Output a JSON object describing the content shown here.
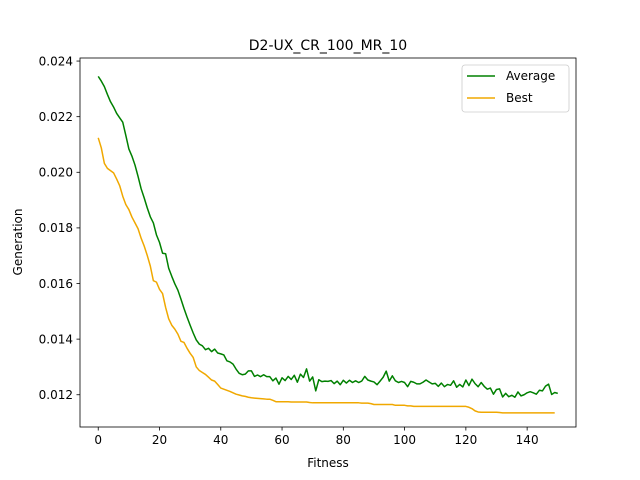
{
  "chart_data": {
    "type": "line",
    "title": "D2-UX_CR_100_MR_10",
    "xlabel": "Fitness",
    "ylabel": "Generation",
    "xlim": [
      -5.95,
      155.95
    ],
    "ylim": [
      0.01084,
      0.02411
    ],
    "xticks": [
      0,
      20,
      40,
      60,
      80,
      100,
      120,
      140
    ],
    "xtick_labels": [
      "0",
      "20",
      "40",
      "60",
      "80",
      "100",
      "120",
      "140"
    ],
    "yticks": [
      0.012,
      0.014,
      0.016,
      0.018,
      0.02,
      0.022,
      0.024
    ],
    "ytick_labels": [
      "0.012",
      "0.014",
      "0.016",
      "0.018",
      "0.020",
      "0.022",
      "0.024"
    ],
    "grid": false,
    "legend_position": "upper right",
    "series": [
      {
        "name": "Average",
        "color": "#008000",
        "x_start": 0,
        "x_step": 1,
        "values": [
          0.02345,
          0.02328,
          0.02308,
          0.0228,
          0.02254,
          0.02235,
          0.02212,
          0.02196,
          0.0218,
          0.02133,
          0.02084,
          0.02058,
          0.02026,
          0.01985,
          0.01941,
          0.01908,
          0.01872,
          0.0184,
          0.01818,
          0.01775,
          0.01748,
          0.01709,
          0.01707,
          0.01655,
          0.01626,
          0.01599,
          0.01576,
          0.01544,
          0.0151,
          0.01479,
          0.0145,
          0.01422,
          0.01397,
          0.01382,
          0.01376,
          0.01362,
          0.01367,
          0.01355,
          0.01364,
          0.0135,
          0.01347,
          0.01343,
          0.01322,
          0.01318,
          0.0131,
          0.01292,
          0.01277,
          0.01272,
          0.01274,
          0.01286,
          0.01286,
          0.01266,
          0.01271,
          0.01265,
          0.01272,
          0.01265,
          0.01265,
          0.0125,
          0.0126,
          0.01238,
          0.01261,
          0.01251,
          0.01266,
          0.01255,
          0.0127,
          0.01245,
          0.01274,
          0.01262,
          0.01293,
          0.01249,
          0.01264,
          0.01214,
          0.01254,
          0.01247,
          0.01249,
          0.01248,
          0.01251,
          0.0124,
          0.01249,
          0.01236,
          0.01252,
          0.01242,
          0.01252,
          0.01244,
          0.0125,
          0.01244,
          0.01249,
          0.01266,
          0.01253,
          0.01249,
          0.01246,
          0.01236,
          0.01249,
          0.01263,
          0.01285,
          0.01249,
          0.01268,
          0.0125,
          0.01244,
          0.01248,
          0.01244,
          0.01229,
          0.01248,
          0.01245,
          0.01239,
          0.01239,
          0.01245,
          0.01253,
          0.01246,
          0.01239,
          0.01241,
          0.0123,
          0.01242,
          0.01229,
          0.01237,
          0.01234,
          0.0125,
          0.01227,
          0.01237,
          0.01228,
          0.01253,
          0.01233,
          0.01256,
          0.0124,
          0.01229,
          0.01244,
          0.0123,
          0.0122,
          0.01224,
          0.01202,
          0.01219,
          0.01221,
          0.01192,
          0.01205,
          0.01193,
          0.01198,
          0.01191,
          0.0121,
          0.01196,
          0.012,
          0.01207,
          0.01211,
          0.01207,
          0.01202,
          0.01216,
          0.01214,
          0.01231,
          0.01238,
          0.01201,
          0.01208,
          0.01205
        ]
      },
      {
        "name": "Best",
        "color": "#f0a800",
        "x_start": 0,
        "x_step": 1,
        "values": [
          0.02124,
          0.02088,
          0.02032,
          0.02014,
          0.02006,
          0.01998,
          0.01976,
          0.01952,
          0.01914,
          0.01884,
          0.01866,
          0.01839,
          0.01818,
          0.01797,
          0.01763,
          0.01735,
          0.01701,
          0.01663,
          0.0161,
          0.01605,
          0.01579,
          0.01564,
          0.01514,
          0.01473,
          0.0145,
          0.01436,
          0.01418,
          0.01392,
          0.01388,
          0.01367,
          0.01349,
          0.01334,
          0.013,
          0.01287,
          0.0128,
          0.01273,
          0.01263,
          0.01253,
          0.01249,
          0.01237,
          0.01224,
          0.0122,
          0.01216,
          0.01212,
          0.01207,
          0.01202,
          0.01199,
          0.01196,
          0.01194,
          0.01191,
          0.01189,
          0.01188,
          0.01187,
          0.01186,
          0.01185,
          0.01184,
          0.01184,
          0.0118,
          0.01175,
          0.01175,
          0.01175,
          0.01175,
          0.01175,
          0.01174,
          0.01174,
          0.01174,
          0.01174,
          0.01174,
          0.01174,
          0.01172,
          0.01171,
          0.01171,
          0.01171,
          0.01171,
          0.01171,
          0.01171,
          0.01171,
          0.01171,
          0.01171,
          0.01171,
          0.01171,
          0.01171,
          0.01171,
          0.01171,
          0.01171,
          0.01171,
          0.0117,
          0.0117,
          0.0117,
          0.01168,
          0.01165,
          0.01165,
          0.01165,
          0.01165,
          0.01165,
          0.01165,
          0.01165,
          0.01162,
          0.01162,
          0.01162,
          0.01162,
          0.0116,
          0.0116,
          0.01158,
          0.01158,
          0.01158,
          0.01158,
          0.01158,
          0.01158,
          0.01158,
          0.01158,
          0.01158,
          0.01158,
          0.01158,
          0.01158,
          0.01158,
          0.01158,
          0.01158,
          0.01158,
          0.01158,
          0.01158,
          0.01155,
          0.0115,
          0.01142,
          0.01138,
          0.01137,
          0.01137,
          0.01137,
          0.01137,
          0.01137,
          0.01137,
          0.01136,
          0.01135,
          0.01135,
          0.01135,
          0.01135,
          0.01135,
          0.01135,
          0.01135,
          0.01135,
          0.01135,
          0.01135,
          0.01135,
          0.01135,
          0.01135,
          0.01135,
          0.01135,
          0.01135,
          0.01135,
          0.01135
        ]
      }
    ]
  }
}
